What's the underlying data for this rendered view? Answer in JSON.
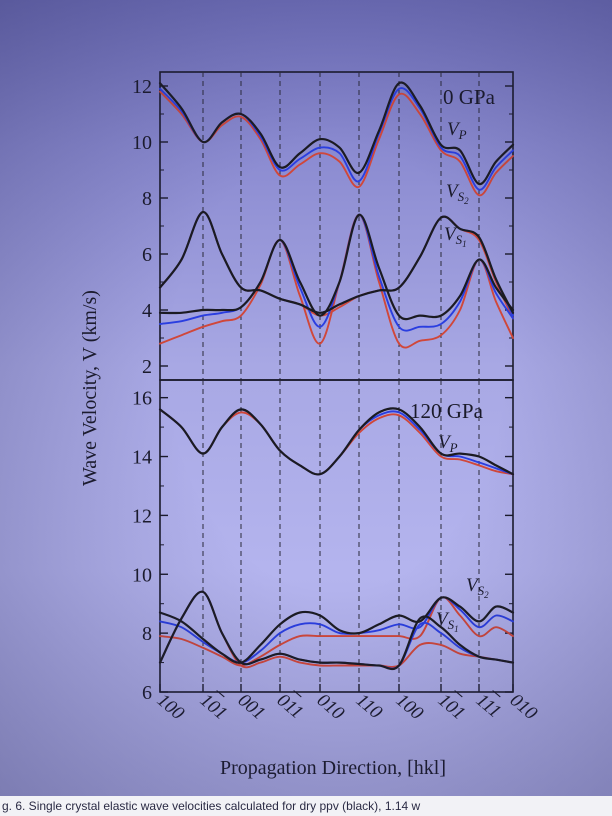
{
  "chart_data": [
    {
      "type": "line",
      "panel_label": "0 GPa",
      "x_tick_labels": [
        "100",
        "101",
        "001",
        "011",
        "010",
        "110",
        "100",
        "101",
        "111",
        "010"
      ],
      "ylim": [
        1.5,
        12.5
      ],
      "y_ticks": [
        2,
        4,
        6,
        8,
        10,
        12
      ],
      "grid": "vertical dashed at each direction",
      "colors": {
        "black": "#1b1b22",
        "blue": "#2a3ee0",
        "red": "#d0473a"
      },
      "curve_labels": [
        "V",
        "P",
        "V",
        "S",
        "2",
        "V",
        "S",
        "1"
      ],
      "series": [
        {
          "group": "VP",
          "color": "black",
          "x": [
            0,
            0.5,
            1,
            1.5,
            2,
            2.5,
            3,
            3.5,
            4,
            4.5,
            5,
            5.5,
            6,
            6.5,
            7,
            7.5,
            8,
            8.5,
            9
          ],
          "values": [
            12.1,
            11.2,
            10.0,
            10.7,
            11.0,
            10.3,
            9.1,
            9.6,
            10.1,
            9.8,
            8.9,
            10.4,
            12.1,
            11.3,
            9.9,
            9.7,
            8.5,
            9.3,
            9.9
          ]
        },
        {
          "group": "VP",
          "color": "blue",
          "x": [
            0,
            0.5,
            1,
            1.5,
            2,
            2.5,
            3,
            3.5,
            4,
            4.5,
            5,
            5.5,
            6,
            6.5,
            7,
            7.5,
            8,
            8.5,
            9
          ],
          "values": [
            11.9,
            11.1,
            10.0,
            10.7,
            11.0,
            10.2,
            9.0,
            9.4,
            9.8,
            9.6,
            8.6,
            10.3,
            11.9,
            11.2,
            9.8,
            9.5,
            8.3,
            9.1,
            9.7
          ]
        },
        {
          "group": "VP",
          "color": "red",
          "x": [
            0,
            0.5,
            1,
            1.5,
            2,
            2.5,
            3,
            3.5,
            4,
            4.5,
            5,
            5.5,
            6,
            6.5,
            7,
            7.5,
            8,
            8.5,
            9
          ],
          "values": [
            11.8,
            11.0,
            10.0,
            10.6,
            10.9,
            10.1,
            8.8,
            9.2,
            9.6,
            9.3,
            8.4,
            10.1,
            11.7,
            11.0,
            9.7,
            9.3,
            8.1,
            8.9,
            9.5
          ]
        },
        {
          "group": "VS2",
          "color": "black",
          "x": [
            0,
            0.5,
            1,
            1.5,
            2,
            2.5,
            3,
            3.5,
            4,
            4.5,
            5,
            5.5,
            6,
            6.5,
            7,
            7.5,
            8,
            8.5,
            9
          ],
          "values": [
            4.8,
            5.8,
            7.5,
            6.0,
            4.8,
            4.7,
            4.4,
            4.2,
            3.9,
            4.2,
            4.5,
            4.7,
            4.8,
            5.9,
            7.3,
            6.9,
            6.6,
            5.1,
            3.9
          ]
        },
        {
          "group": "VS2",
          "color": "blue",
          "x": [
            0,
            0.5,
            1,
            1.5,
            2,
            2.5,
            3,
            3.5,
            4,
            4.5,
            5,
            5.5,
            6,
            6.5,
            7,
            7.5,
            8,
            8.5,
            9
          ],
          "values": [
            4.8,
            5.8,
            7.5,
            6.0,
            4.8,
            4.7,
            4.4,
            4.2,
            3.9,
            4.2,
            4.5,
            4.7,
            4.8,
            5.9,
            7.3,
            6.9,
            6.6,
            5.1,
            3.8
          ]
        },
        {
          "group": "VS2",
          "color": "red",
          "x": [
            0,
            0.5,
            1,
            1.5,
            2,
            2.5,
            3,
            3.5,
            4,
            4.5,
            5,
            5.5,
            6,
            6.5,
            7,
            7.5,
            8,
            8.5,
            9
          ],
          "values": [
            4.8,
            5.8,
            7.5,
            6.0,
            4.8,
            4.7,
            4.4,
            4.2,
            3.8,
            4.1,
            4.5,
            4.7,
            4.8,
            5.9,
            7.3,
            6.9,
            6.5,
            5.0,
            3.7
          ]
        },
        {
          "group": "VS1",
          "color": "black",
          "x": [
            0,
            0.5,
            1,
            1.5,
            2,
            2.5,
            3,
            3.5,
            4,
            4.5,
            5,
            5.5,
            6,
            6.5,
            7,
            7.5,
            8,
            8.5,
            9
          ],
          "values": [
            3.9,
            3.9,
            4.0,
            4.0,
            4.1,
            5.0,
            6.5,
            5.0,
            3.8,
            5.0,
            7.4,
            5.5,
            3.8,
            3.8,
            3.8,
            4.5,
            5.8,
            4.8,
            4.0
          ]
        },
        {
          "group": "VS1",
          "color": "blue",
          "x": [
            0,
            0.5,
            1,
            1.5,
            2,
            2.5,
            3,
            3.5,
            4,
            4.5,
            5,
            5.5,
            6,
            6.5,
            7,
            7.5,
            8,
            8.5,
            9
          ],
          "values": [
            3.5,
            3.6,
            3.8,
            3.9,
            4.1,
            5.0,
            6.5,
            4.8,
            3.4,
            5.0,
            7.4,
            5.2,
            3.4,
            3.4,
            3.5,
            4.3,
            5.8,
            4.6,
            3.7
          ]
        },
        {
          "group": "VS1",
          "color": "red",
          "x": [
            0,
            0.5,
            1,
            1.5,
            2,
            2.5,
            3,
            3.5,
            4,
            4.5,
            5,
            5.5,
            6,
            6.5,
            7,
            7.5,
            8,
            8.5,
            9
          ],
          "values": [
            2.8,
            3.1,
            3.4,
            3.6,
            3.8,
            4.9,
            6.5,
            4.5,
            2.8,
            5.0,
            7.4,
            5.0,
            2.8,
            2.9,
            3.1,
            4.0,
            5.8,
            4.3,
            3.0
          ]
        }
      ]
    },
    {
      "type": "line",
      "panel_label": "120 GPa",
      "ylim": [
        6,
        16.6
      ],
      "y_ticks": [
        6,
        8,
        10,
        12,
        14,
        16
      ],
      "grid": "vertical dashed at each direction",
      "curve_labels": [
        "V",
        "P",
        "V",
        "S",
        "2",
        "V",
        "S",
        "1"
      ],
      "series": [
        {
          "group": "VP",
          "color": "black",
          "x": [
            0,
            0.5,
            1,
            1.5,
            2,
            2.5,
            3,
            3.5,
            4,
            4.5,
            5,
            5.5,
            6,
            6.5,
            7,
            7.5,
            8,
            8.5,
            9
          ],
          "values": [
            15.6,
            15.0,
            14.1,
            15.0,
            15.6,
            15.1,
            14.2,
            13.7,
            13.4,
            14.0,
            14.9,
            15.5,
            15.6,
            15.0,
            14.1,
            14.1,
            14.0,
            13.7,
            13.4
          ]
        },
        {
          "group": "VP",
          "color": "blue",
          "x": [
            0,
            0.5,
            1,
            1.5,
            2,
            2.5,
            3,
            3.5,
            4,
            4.5,
            5,
            5.5,
            6,
            6.5,
            7,
            7.5,
            8,
            8.5,
            9
          ],
          "values": [
            15.6,
            15.0,
            14.1,
            15.0,
            15.6,
            15.1,
            14.2,
            13.7,
            13.4,
            14.0,
            14.9,
            15.4,
            15.5,
            14.9,
            14.1,
            14.0,
            13.8,
            13.6,
            13.4
          ]
        },
        {
          "group": "VP",
          "color": "red",
          "x": [
            0,
            0.5,
            1,
            1.5,
            2,
            2.5,
            3,
            3.5,
            4,
            4.5,
            5,
            5.5,
            6,
            6.5,
            7,
            7.5,
            8,
            8.5,
            9
          ],
          "values": [
            15.6,
            15.0,
            14.1,
            15.0,
            15.5,
            15.1,
            14.2,
            13.7,
            13.4,
            14.0,
            14.8,
            15.3,
            15.4,
            14.8,
            14.0,
            13.9,
            13.7,
            13.5,
            13.4
          ]
        },
        {
          "group": "VS2",
          "color": "black",
          "x": [
            0,
            0.5,
            1,
            1.5,
            2,
            2.5,
            3,
            3.5,
            4,
            4.5,
            5,
            5.5,
            6,
            6.5,
            7,
            7.5,
            8,
            8.5,
            9
          ],
          "values": [
            8.7,
            8.4,
            7.8,
            7.3,
            7.0,
            7.6,
            8.3,
            8.7,
            8.6,
            8.1,
            8.0,
            8.3,
            8.6,
            8.4,
            9.2,
            8.9,
            8.4,
            8.9,
            8.7
          ]
        },
        {
          "group": "VS2",
          "color": "blue",
          "x": [
            0,
            0.5,
            1,
            1.5,
            2,
            2.5,
            3,
            3.5,
            4,
            4.5,
            5,
            5.5,
            6,
            6.5,
            7,
            7.5,
            8,
            8.5,
            9
          ],
          "values": [
            8.4,
            8.2,
            7.7,
            7.3,
            7.0,
            7.4,
            8.0,
            8.3,
            8.3,
            8.0,
            8.0,
            8.1,
            8.3,
            8.2,
            9.2,
            8.8,
            8.2,
            8.6,
            8.4
          ]
        },
        {
          "group": "VS2",
          "color": "red",
          "x": [
            0,
            0.5,
            1,
            1.5,
            2,
            2.5,
            3,
            3.5,
            4,
            4.5,
            5,
            5.5,
            6,
            6.5,
            7,
            7.5,
            8,
            8.5,
            9
          ],
          "values": [
            7.9,
            7.8,
            7.5,
            7.2,
            6.9,
            7.2,
            7.6,
            7.9,
            7.9,
            7.9,
            7.9,
            7.9,
            7.9,
            7.9,
            9.2,
            8.6,
            7.9,
            8.2,
            7.9
          ]
        },
        {
          "group": "VS1",
          "color": "black",
          "x": [
            0,
            0.5,
            1,
            1.5,
            2,
            2.5,
            3,
            3.5,
            4,
            4.5,
            5,
            5.5,
            6,
            6.5,
            7,
            7.5,
            8,
            8.5,
            9
          ],
          "values": [
            7.0,
            8.5,
            9.4,
            8.0,
            7.0,
            7.1,
            7.3,
            7.1,
            7.0,
            7.0,
            6.95,
            6.9,
            6.9,
            8.5,
            8.2,
            7.6,
            7.2,
            7.1,
            7.0
          ]
        },
        {
          "group": "VS1",
          "color": "blue",
          "x": [
            0,
            0.5,
            1,
            1.5,
            2,
            2.5,
            3,
            3.5,
            4,
            4.5,
            5,
            5.5,
            6,
            6.5,
            7,
            7.5,
            8,
            8.5,
            9
          ],
          "values": [
            7.0,
            8.5,
            9.4,
            8.0,
            7.0,
            7.1,
            7.3,
            7.1,
            7.0,
            7.0,
            6.95,
            6.9,
            6.9,
            8.3,
            8.0,
            7.5,
            7.2,
            7.1,
            7.0
          ]
        },
        {
          "group": "VS1",
          "color": "red",
          "x": [
            0,
            0.5,
            1,
            1.5,
            2,
            2.5,
            3,
            3.5,
            4,
            4.5,
            5,
            5.5,
            6,
            6.5,
            7,
            7.5,
            8,
            8.5,
            9
          ],
          "values": [
            7.0,
            8.5,
            9.4,
            8.0,
            6.9,
            7.0,
            7.2,
            7.0,
            6.9,
            6.9,
            6.9,
            6.9,
            6.9,
            7.6,
            7.6,
            7.3,
            7.2,
            7.1,
            7.0
          ]
        }
      ]
    }
  ],
  "axes": {
    "xlabel": "Propagation Direction, [hkl]",
    "ylabel": "Wave Velocity, V (km/s)"
  },
  "caption_text": "g. 6. Single crystal elastic wave velocities calculated for dry ppv (black), 1.14 w"
}
